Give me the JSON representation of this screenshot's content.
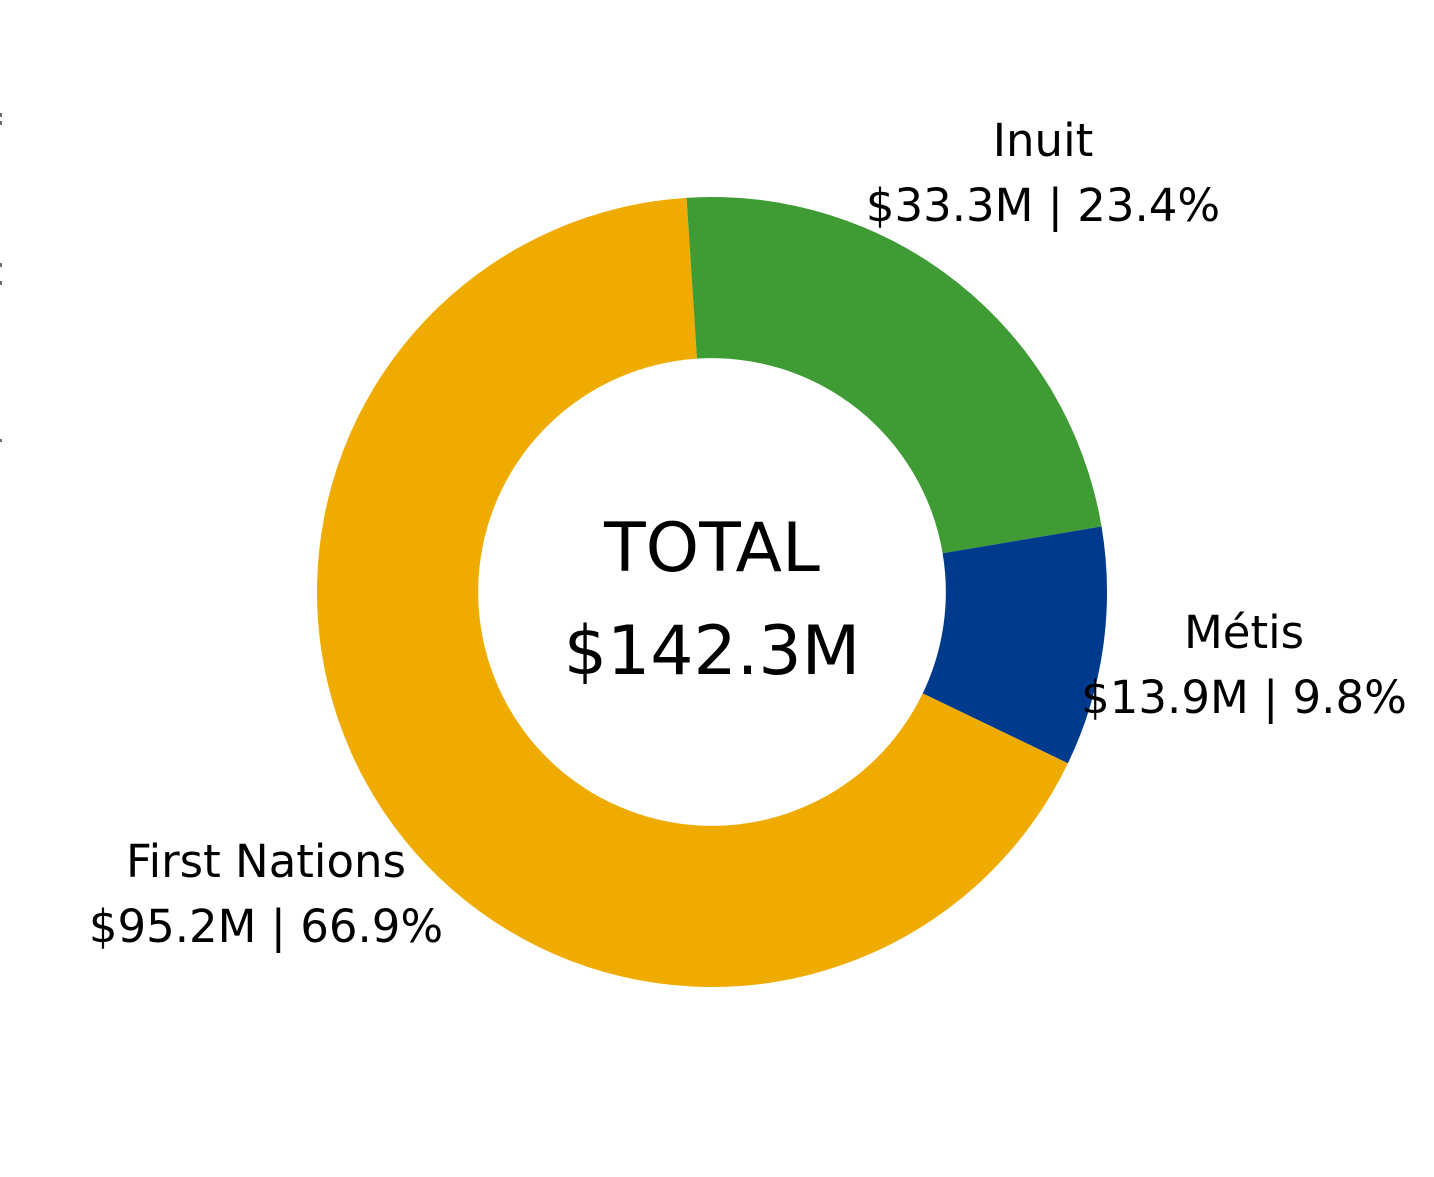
{
  "figure": {
    "background_color": "#FFFFFF",
    "text_color": "#000000"
  },
  "chart_data": {
    "type": "pie",
    "variant": "donut",
    "title": "",
    "center_label": {
      "line1": "TOTAL",
      "line2": "$142.3M"
    },
    "total": 142.3,
    "categories": [
      "Inuit",
      "Métis",
      "First Nations"
    ],
    "values": [
      33.3,
      13.9,
      95.2
    ],
    "percentages": [
      23.4,
      9.8,
      66.9
    ],
    "colors": [
      "#3F9C35",
      "#003A8D",
      "#F0AB00"
    ],
    "segment_labels": [
      {
        "name": "Inuit",
        "value_line": "$33.3M | 23.4%"
      },
      {
        "name": "Métis",
        "value_line": "$13.9M | 9.8%"
      },
      {
        "name": "First Nations",
        "value_line": "$95.2M | 66.9%"
      }
    ],
    "layout": {
      "start_angle_deg": 93.7,
      "direction": "clockwise",
      "inner_radius_ratio": 0.592,
      "legend": "none",
      "grid": false,
      "label_position": "outside"
    }
  }
}
